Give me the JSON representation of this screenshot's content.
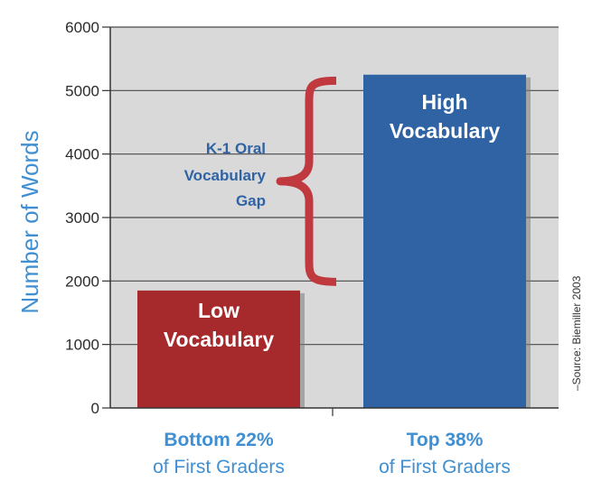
{
  "chart_data": {
    "type": "bar",
    "title": "",
    "xlabel": "",
    "ylabel": "Number of Words",
    "ylim": [
      0,
      6000
    ],
    "yticks": [
      0,
      1000,
      2000,
      3000,
      4000,
      5000,
      6000
    ],
    "grid": true,
    "categories": [
      {
        "line1": "Bottom 22%",
        "line2": "of First Graders"
      },
      {
        "line1": "Top 38%",
        "line2": "of First Graders"
      }
    ],
    "values": [
      1850,
      5250
    ],
    "bar_labels": [
      [
        "Low",
        "Vocabulary"
      ],
      [
        "High",
        "Vocabulary"
      ]
    ],
    "bar_colors": [
      "#a6292c",
      "#2f63a4"
    ],
    "annotation": {
      "lines": [
        "K-1 Oral",
        "Vocabulary",
        "Gap"
      ],
      "from": 2000,
      "to": 5000,
      "bracket_color": "#c0393f"
    },
    "source": "–Source: Biemiller 2003",
    "colors": {
      "plot_bg": "#d9d9d9",
      "grid": "#4a4a4a",
      "axis_text": "#3f8fd2"
    }
  }
}
